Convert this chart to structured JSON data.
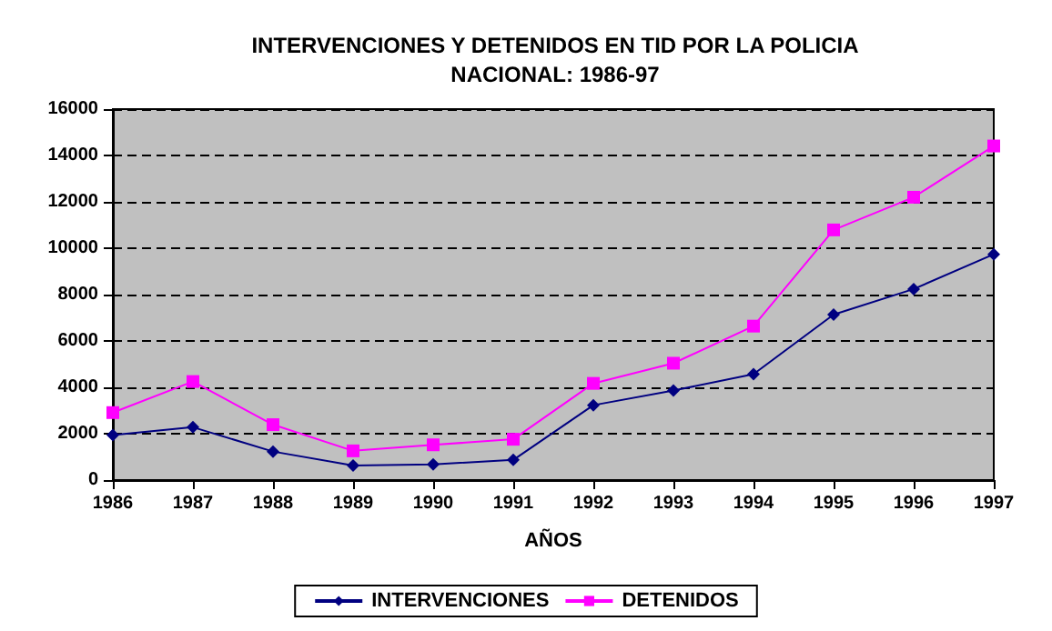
{
  "chart_data": {
    "type": "line",
    "title": "INTERVENCIONES Y DETENIDOS EN TID POR LA POLICIA\nNACIONAL: 1986-97",
    "xlabel": "AÑOS",
    "categories": [
      "1986",
      "1987",
      "1988",
      "1989",
      "1990",
      "1991",
      "1992",
      "1993",
      "1994",
      "1995",
      "1996",
      "1997"
    ],
    "series": [
      {
        "name": "INTERVENCIONES",
        "color": "#000080",
        "marker": "diamond",
        "values": [
          1940,
          2280,
          1230,
          630,
          680,
          870,
          3230,
          3860,
          4570,
          7140,
          8240,
          9740
        ]
      },
      {
        "name": "DETENIDOS",
        "color": "#ff00ff",
        "marker": "square",
        "values": [
          2910,
          4250,
          2390,
          1260,
          1520,
          1760,
          4170,
          5040,
          6640,
          10790,
          12200,
          14410
        ]
      }
    ],
    "ylim": [
      0,
      16000
    ],
    "yticks": [
      0,
      2000,
      4000,
      6000,
      8000,
      10000,
      12000,
      14000,
      16000
    ],
    "grid": "y",
    "legend": "bottom"
  }
}
